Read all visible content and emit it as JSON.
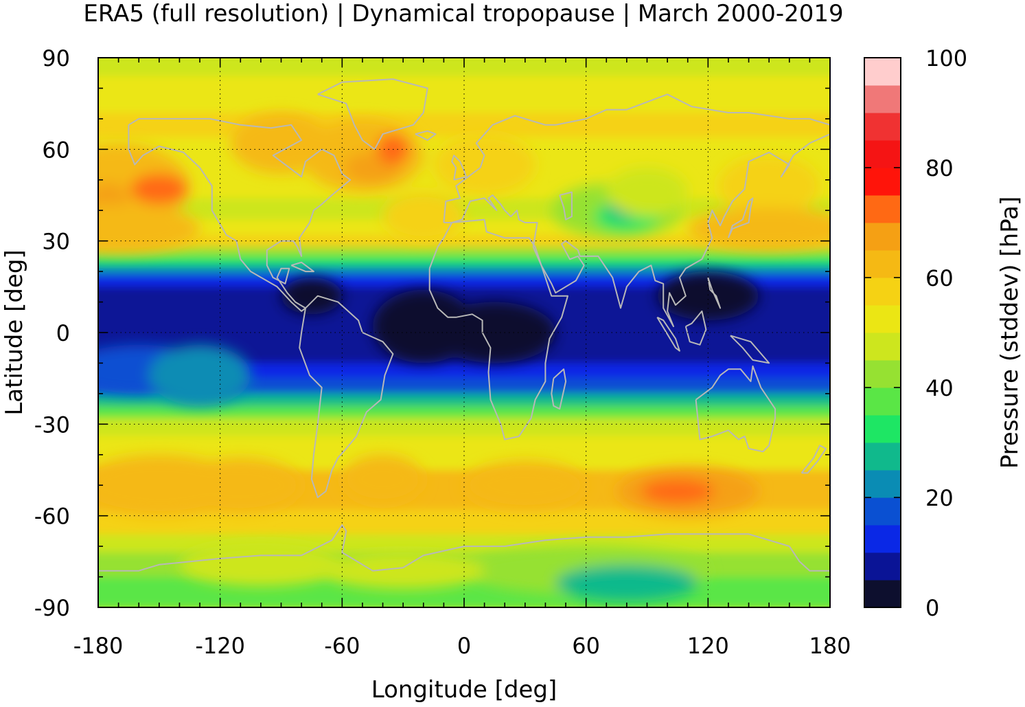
{
  "title": "ERA5 (full resolution) | Dynamical tropopause | March 2000-2019",
  "map": {
    "projection": "equirectangular",
    "variable": "tropopause pressure standard deviation",
    "x_axis": {
      "label": "Longitude [deg]",
      "range": [
        -180,
        180
      ],
      "ticks": [
        "-180",
        "-120",
        "-60",
        "0",
        "60",
        "120",
        "180"
      ]
    },
    "y_axis": {
      "label": "Latitude [deg]",
      "range": [
        -90,
        90
      ],
      "ticks": [
        "90",
        "60",
        "30",
        "0",
        "-30",
        "-60",
        "-90"
      ]
    },
    "grid": true,
    "coastline_color": "#b8b8b8",
    "features": [
      {
        "name": "tropical minimum band",
        "lat_range": [
          -20,
          20
        ],
        "level": "0-10"
      },
      {
        "name": "north pacific maximum",
        "lon": -155,
        "lat": 47,
        "level": "65-70"
      },
      {
        "name": "north atlantic maximum",
        "lon": -45,
        "lat": 55,
        "level": "65-75"
      },
      {
        "name": "central asia minimum",
        "lon": 75,
        "lat": 38,
        "level": "25-35"
      },
      {
        "name": "southern ocean maximum",
        "lon": 110,
        "lat": -52,
        "level": "65-70"
      },
      {
        "name": "antarctic minimum",
        "lon": 80,
        "lat": -82,
        "level": "25-30"
      }
    ]
  },
  "colorbar": {
    "label": "Pressure (stddev) [hPa]",
    "range": [
      0,
      100
    ],
    "ticks": [
      "0",
      "20",
      "40",
      "60",
      "80",
      "100"
    ],
    "levels": [
      "#0d0f2e",
      "#0a1496",
      "#0a28e6",
      "#0a50d2",
      "#0a8cb4",
      "#10b98c",
      "#1ee664",
      "#5ae646",
      "#96e132",
      "#cde61e",
      "#ebe614",
      "#f5d214",
      "#f5b914",
      "#f5a014",
      "#ff6914",
      "#ff140a",
      "#f51414",
      "#f03232",
      "#f07878",
      "#ffcdcd"
    ]
  }
}
